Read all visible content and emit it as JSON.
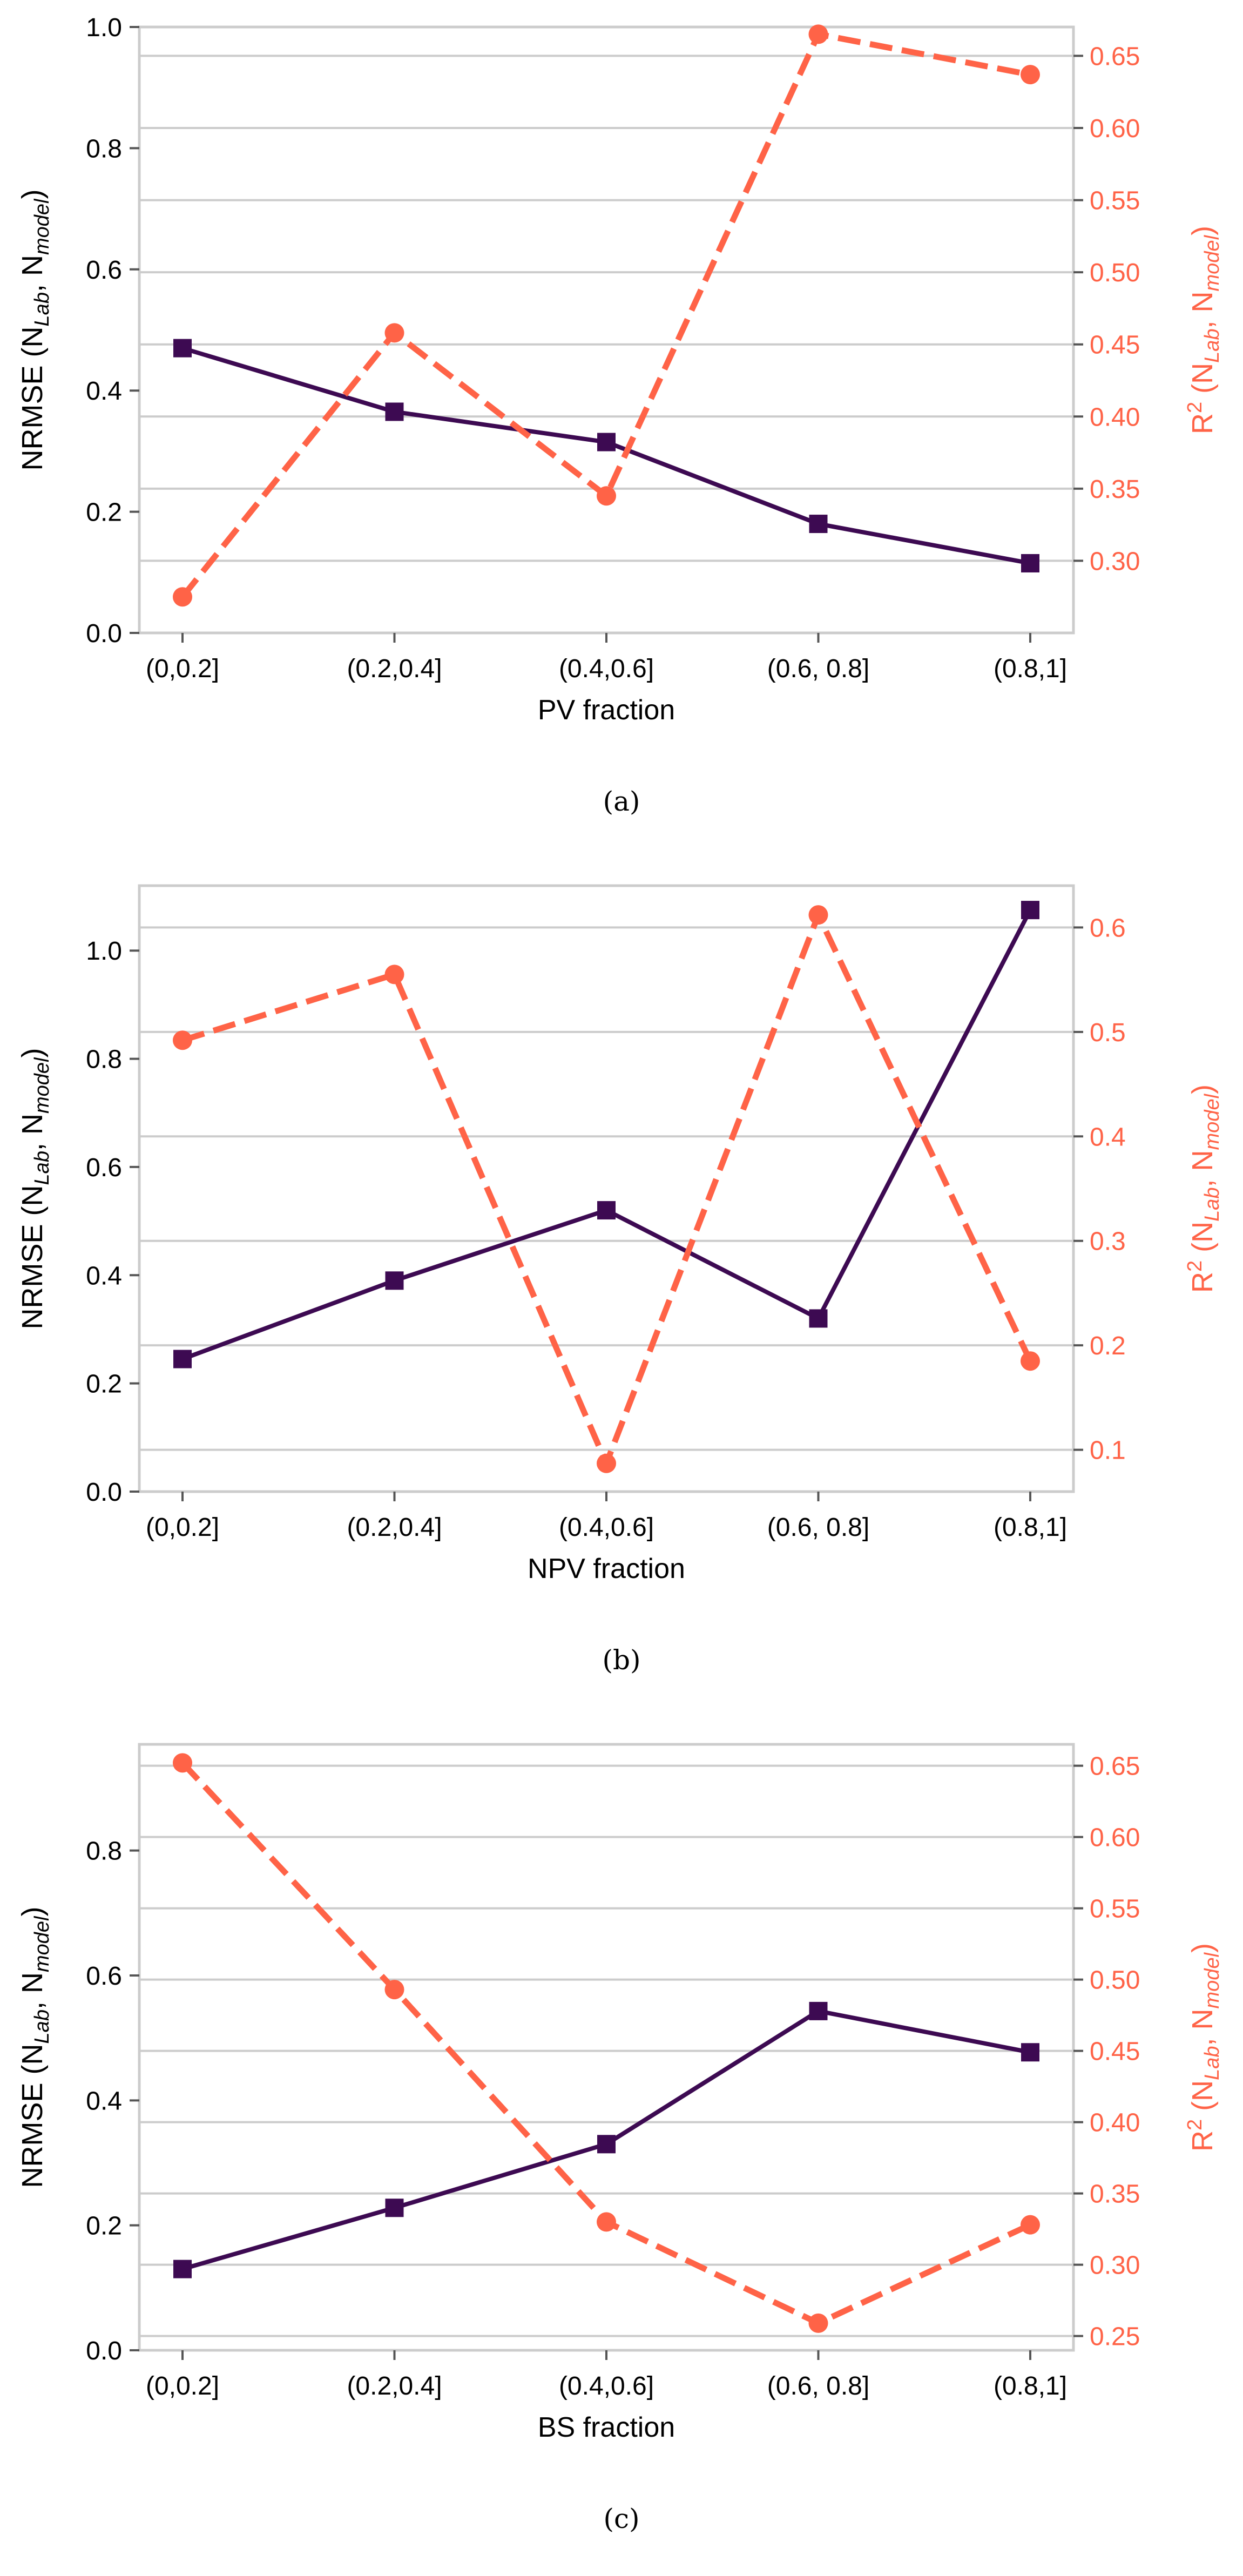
{
  "colors": {
    "nrmse_line": "#3d0a52",
    "r2_line": "#ff6347",
    "grid": "#cccccc",
    "axis_text": "#000000"
  },
  "chart_data": [
    {
      "type": "line",
      "caption": "(a)",
      "categories": [
        "(0,0.2]",
        "(0.2,0.4]",
        "(0.4,0.6]",
        "(0.6, 0.8]",
        "(0.8,1]"
      ],
      "xlabel": "PV fraction",
      "ylabel": {
        "base": "NRMSE (N",
        "sub1": "Lab",
        "mid": ", N",
        "sub2": "model",
        "end": ")"
      },
      "y2label": {
        "base": "R",
        "sup": "2",
        "rest": " (N",
        "sub1": "Lab",
        "mid": ", N",
        "sub2": "model",
        "end": ")"
      },
      "ylim": [
        0,
        1.0
      ],
      "yticks": [
        0.0,
        0.2,
        0.4,
        0.6,
        0.8,
        1.0
      ],
      "y2lim": [
        0.25,
        0.67
      ],
      "y2ticks": [
        0.3,
        0.35,
        0.4,
        0.45,
        0.5,
        0.55,
        0.6,
        0.65
      ],
      "grid": true,
      "series": [
        {
          "name": "NRMSE",
          "axis": "left",
          "style": "solid",
          "marker": "square",
          "values": [
            0.47,
            0.365,
            0.315,
            0.18,
            0.115
          ]
        },
        {
          "name": "R2",
          "axis": "right",
          "style": "dashed",
          "marker": "circle",
          "values": [
            0.275,
            0.458,
            0.345,
            0.665,
            0.637
          ]
        }
      ]
    },
    {
      "type": "line",
      "caption": "(b)",
      "categories": [
        "(0,0.2]",
        "(0.2,0.4]",
        "(0.4,0.6]",
        "(0.6, 0.8]",
        "(0.8,1]"
      ],
      "xlabel": "NPV fraction",
      "ylabel": {
        "base": "NRMSE (N",
        "sub1": "Lab",
        "mid": ", N",
        "sub2": "model",
        "end": ")"
      },
      "y2label": {
        "base": "R",
        "sup": "2",
        "rest": " (N",
        "sub1": "Lab",
        "mid": ", N",
        "sub2": "model",
        "end": ")"
      },
      "ylim": [
        0,
        1.12
      ],
      "yticks": [
        0.0,
        0.2,
        0.4,
        0.6,
        0.8,
        1.0
      ],
      "y2lim": [
        0.06,
        0.64
      ],
      "y2ticks": [
        0.1,
        0.2,
        0.3,
        0.4,
        0.5,
        0.6
      ],
      "grid": true,
      "series": [
        {
          "name": "NRMSE",
          "axis": "left",
          "style": "solid",
          "marker": "square",
          "values": [
            0.245,
            0.39,
            0.52,
            0.32,
            1.075
          ]
        },
        {
          "name": "R2",
          "axis": "right",
          "style": "dashed",
          "marker": "circle",
          "values": [
            0.492,
            0.555,
            0.087,
            0.612,
            0.185
          ]
        }
      ]
    },
    {
      "type": "line",
      "caption": "(c)",
      "categories": [
        "(0,0.2]",
        "(0.2,0.4]",
        "(0.4,0.6]",
        "(0.6, 0.8]",
        "(0.8,1]"
      ],
      "xlabel": "BS fraction",
      "ylabel": {
        "base": "NRMSE (N",
        "sub1": "Lab",
        "mid": ", N",
        "sub2": "model",
        "end": ")"
      },
      "y2label": {
        "base": "R",
        "sup": "2",
        "rest": " (N",
        "sub1": "Lab",
        "mid": ", N",
        "sub2": "model",
        "end": ")"
      },
      "ylim": [
        0,
        0.97
      ],
      "yticks": [
        0.0,
        0.2,
        0.4,
        0.6,
        0.8
      ],
      "y2lim": [
        0.24,
        0.665
      ],
      "y2ticks": [
        0.25,
        0.3,
        0.35,
        0.4,
        0.45,
        0.5,
        0.55,
        0.6,
        0.65
      ],
      "grid": true,
      "series": [
        {
          "name": "NRMSE",
          "axis": "left",
          "style": "solid",
          "marker": "square",
          "values": [
            0.13,
            0.228,
            0.33,
            0.543,
            0.477
          ]
        },
        {
          "name": "R2",
          "axis": "right",
          "style": "dashed",
          "marker": "circle",
          "values": [
            0.652,
            0.493,
            0.33,
            0.259,
            0.328
          ]
        }
      ]
    }
  ]
}
